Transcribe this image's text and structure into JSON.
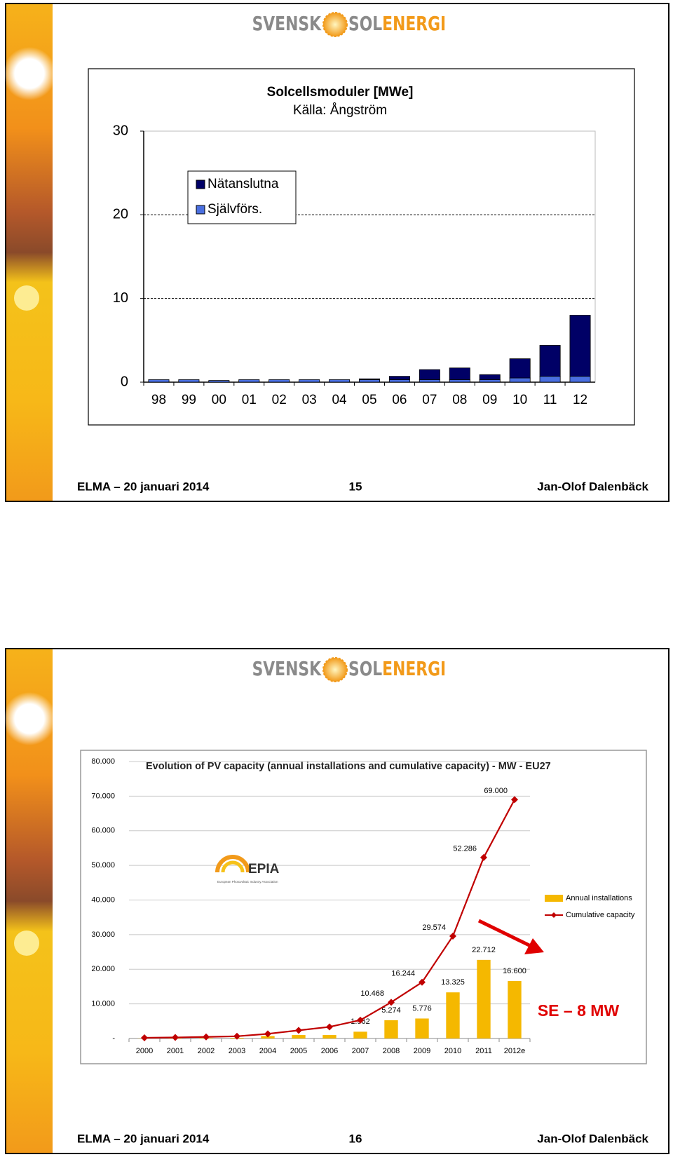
{
  "slides": [
    {
      "logo": [
        "SVENSK",
        "SOL",
        "ENERGI"
      ],
      "footer": {
        "left": "ELMA – 20 januari 2014",
        "page": "15",
        "right": "Jan-Olof Dalenbäck"
      }
    },
    {
      "logo": [
        "SVENSK",
        "SOL",
        "ENERGI"
      ],
      "footer": {
        "left": "ELMA – 20 januari 2014",
        "page": "16",
        "right": "Jan-Olof Dalenbäck"
      },
      "epia_logo": {
        "name": "EPIA",
        "tagline": "European Photovoltaic Industry Association"
      }
    }
  ],
  "chart_data": [
    {
      "type": "bar",
      "stacked": true,
      "title": "Solcellsmoduler  [MWe]",
      "subtitle": "Källa: Ångström",
      "categories": [
        "98",
        "99",
        "00",
        "01",
        "02",
        "03",
        "04",
        "05",
        "06",
        "07",
        "08",
        "09",
        "10",
        "11",
        "12"
      ],
      "series": [
        {
          "name": "Självförs.",
          "color": "#4a6fe0",
          "values": [
            0.3,
            0.3,
            0.2,
            0.3,
            0.3,
            0.3,
            0.3,
            0.3,
            0.3,
            0.3,
            0.3,
            0.3,
            0.5,
            0.7,
            0.7
          ]
        },
        {
          "name": "Nätanslutna",
          "color": "#000066",
          "values": [
            0,
            0,
            0,
            0,
            0,
            0,
            0,
            0.1,
            0.4,
            1.2,
            1.4,
            0.6,
            2.3,
            3.7,
            7.3
          ]
        }
      ],
      "ylim": [
        0,
        30
      ],
      "yticks": [
        0,
        10,
        20,
        30
      ],
      "grid": true,
      "grid_style": "dashed",
      "legend": "upper-left"
    },
    {
      "type": "combo",
      "title": "Evolution of PV capacity (annual installations and cumulative capacity) - MW - EU27",
      "categories": [
        "2000",
        "2001",
        "2002",
        "2003",
        "2004",
        "2005",
        "2006",
        "2007",
        "2008",
        "2009",
        "2010",
        "2011",
        "2012e"
      ],
      "series": [
        {
          "name": "Annual installations",
          "type": "bar",
          "color": "#f5b800",
          "values": [
            50,
            100,
            150,
            200,
            700,
            1000,
            1000,
            1962,
            5274,
            5776,
            13325,
            22712,
            16600
          ],
          "value_labels": [
            null,
            null,
            null,
            null,
            null,
            null,
            null,
            "1.962",
            "5.274",
            "5.776",
            "13.325",
            "22.712",
            "16.600"
          ]
        },
        {
          "name": "Cumulative capacity",
          "type": "line",
          "color": "#c00000",
          "values": [
            200,
            300,
            450,
            650,
            1350,
            2350,
            3350,
            5300,
            10468,
            16244,
            29574,
            52286,
            69000
          ],
          "value_labels": [
            null,
            null,
            null,
            null,
            null,
            null,
            null,
            null,
            "10.468",
            "16.244",
            "29.574",
            "52.286",
            "69.000"
          ]
        }
      ],
      "ylim": [
        0,
        80000
      ],
      "yticks": [
        {
          "value": 0,
          "label": "-"
        },
        {
          "value": 10000,
          "label": "10.000"
        },
        {
          "value": 20000,
          "label": "20.000"
        },
        {
          "value": 30000,
          "label": "30.000"
        },
        {
          "value": 40000,
          "label": "40.000"
        },
        {
          "value": 50000,
          "label": "50.000"
        },
        {
          "value": 60000,
          "label": "60.000"
        },
        {
          "value": 70000,
          "label": "70.000"
        },
        {
          "value": 80000,
          "label": "80.000"
        }
      ],
      "grid": true,
      "grid_style": "solid",
      "legend": "right",
      "annotation": "SE – 8 MW"
    }
  ]
}
